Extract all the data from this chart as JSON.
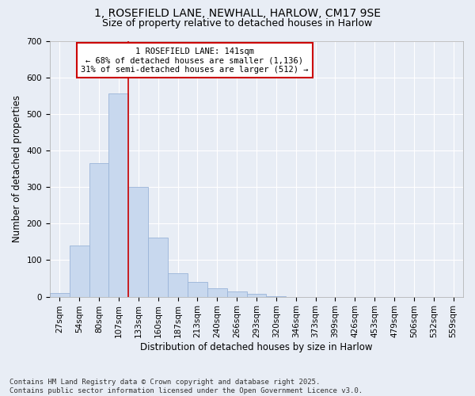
{
  "title_line1": "1, ROSEFIELD LANE, NEWHALL, HARLOW, CM17 9SE",
  "title_line2": "Size of property relative to detached houses in Harlow",
  "xlabel": "Distribution of detached houses by size in Harlow",
  "ylabel": "Number of detached properties",
  "bar_color": "#c8d8ee",
  "bar_edge_color": "#9ab4d8",
  "background_color": "#e8edf5",
  "grid_color": "#ffffff",
  "categories": [
    "27sqm",
    "54sqm",
    "80sqm",
    "107sqm",
    "133sqm",
    "160sqm",
    "187sqm",
    "213sqm",
    "240sqm",
    "266sqm",
    "293sqm",
    "320sqm",
    "346sqm",
    "373sqm",
    "399sqm",
    "426sqm",
    "453sqm",
    "479sqm",
    "506sqm",
    "532sqm",
    "559sqm"
  ],
  "values": [
    10,
    140,
    365,
    555,
    300,
    162,
    65,
    40,
    22,
    14,
    8,
    2,
    0,
    0,
    0,
    0,
    0,
    0,
    0,
    0,
    0
  ],
  "property_label": "1 ROSEFIELD LANE: 141sqm",
  "annotation_line1": "← 68% of detached houses are smaller (1,136)",
  "annotation_line2": "31% of semi-detached houses are larger (512) →",
  "annotation_box_color": "#ffffff",
  "annotation_box_edge": "#cc0000",
  "vline_color": "#cc0000",
  "vline_x": 3.5,
  "ylim": [
    0,
    700
  ],
  "yticks": [
    0,
    100,
    200,
    300,
    400,
    500,
    600,
    700
  ],
  "footnote": "Contains HM Land Registry data © Crown copyright and database right 2025.\nContains public sector information licensed under the Open Government Licence v3.0.",
  "title_fontsize": 10,
  "subtitle_fontsize": 9,
  "axis_label_fontsize": 8.5,
  "tick_fontsize": 7.5,
  "annotation_fontsize": 7.5,
  "footnote_fontsize": 6.5
}
